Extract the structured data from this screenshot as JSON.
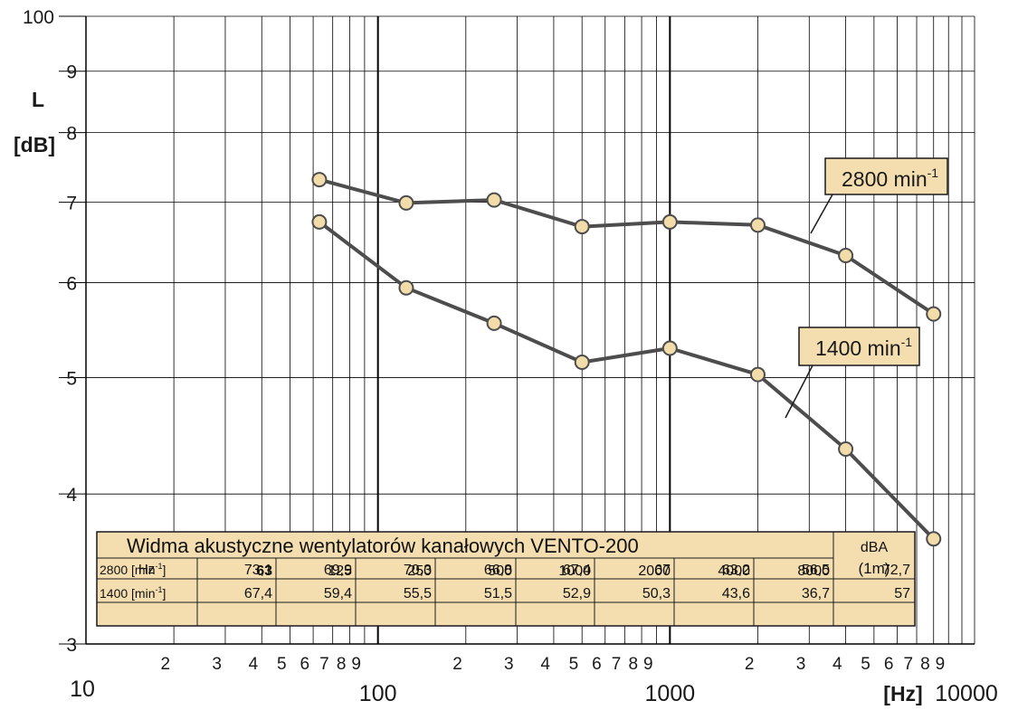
{
  "chart_data": {
    "type": "line",
    "xscale": "log",
    "yscale": "log",
    "xlim": [
      10,
      10000
    ],
    "ylim": [
      30,
      100
    ],
    "grid": true,
    "ylabel": "L",
    "yunit": "[dB]",
    "xunit": "[Hz]",
    "x_decade_labels": [
      "10",
      "100",
      "1000",
      "10000"
    ],
    "x_minor_labels": [
      "2",
      "3",
      "4",
      "5",
      "6",
      "7",
      "8",
      "9"
    ],
    "y_tick_labels": [
      "100",
      "9",
      "8",
      "7",
      "6",
      "5",
      "4",
      "3"
    ],
    "series": [
      {
        "name": "2800 min-1",
        "label_main": "2800 min",
        "label_sup": "-1",
        "x": [
          63,
          125,
          250,
          500,
          1000,
          2000,
          4000,
          8000
        ],
        "y": [
          73.1,
          69.9,
          70.3,
          66.8,
          67.4,
          67,
          63.2,
          56.5
        ]
      },
      {
        "name": "1400 min-1",
        "label_main": "1400 min",
        "label_sup": "-1",
        "x": [
          63,
          125,
          250,
          500,
          1000,
          2000,
          4000,
          8000
        ],
        "y": [
          67.4,
          59.4,
          55.5,
          51.5,
          52.9,
          50.3,
          43.6,
          36.7
        ]
      }
    ]
  },
  "table": {
    "title": "Widma akustyczne wentylatorów kanałowych VENTO-200",
    "dba_header": "dBA",
    "dba_sub": "(1m)",
    "hz_label": "Hz",
    "freqs": [
      "63",
      "125",
      "250",
      "500",
      "1000",
      "2000",
      "4000",
      "8000"
    ],
    "rows": [
      {
        "label_main": "2800 [min",
        "label_sup": "-1",
        "label_end": "]",
        "values": [
          "73,1",
          "69,9",
          "70,3",
          "66,8",
          "67,4",
          "67",
          "63,2",
          "56,5"
        ],
        "dba": "72,7"
      },
      {
        "label_main": "1400 [min",
        "label_sup": "-1",
        "label_end": "]",
        "values": [
          "67,4",
          "59,4",
          "55,5",
          "51,5",
          "52,9",
          "50,3",
          "43,6",
          "36,7"
        ],
        "dba": "57"
      }
    ]
  },
  "colors": {
    "line": "#4d4d4d",
    "marker_fill": "#f1dcaa",
    "marker_stroke": "#4d4d4d",
    "table_fill": "#f4deb0",
    "label_fill": "#f4deb0",
    "grid": "#000000"
  }
}
